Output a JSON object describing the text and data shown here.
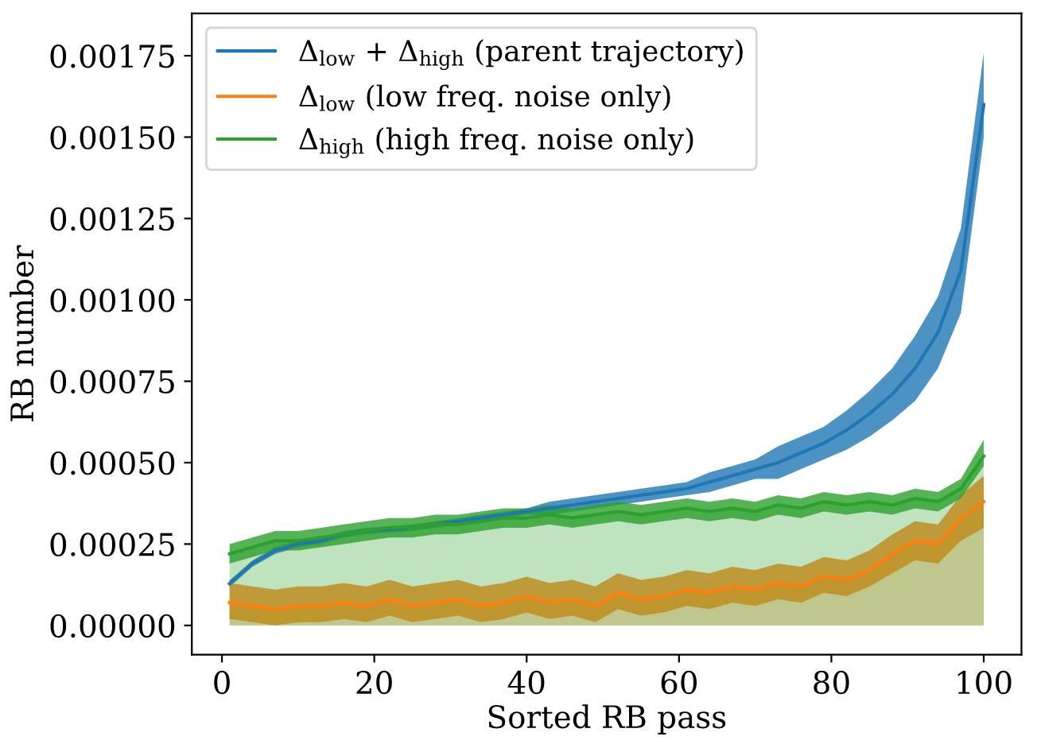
{
  "chart_data": {
    "type": "line",
    "xlabel": "Sorted RB pass",
    "ylabel": "RB number",
    "x": [
      1,
      4,
      7,
      10,
      13,
      16,
      19,
      22,
      25,
      28,
      31,
      34,
      37,
      40,
      43,
      46,
      49,
      52,
      55,
      58,
      61,
      64,
      67,
      70,
      73,
      76,
      79,
      82,
      85,
      88,
      91,
      94,
      97,
      100
    ],
    "series": [
      {
        "name": "Δ$_{low}$ + Δ$_{high}$ (parent trajectory)",
        "color": "#1f77b4",
        "values": [
          0.000128,
          0.00019,
          0.00023,
          0.00025,
          0.00026,
          0.00028,
          0.00029,
          0.000295,
          0.0003,
          0.00031,
          0.00032,
          0.00033,
          0.00034,
          0.00035,
          0.00036,
          0.00037,
          0.00038,
          0.00039,
          0.0004,
          0.00041,
          0.00042,
          0.00044,
          0.00046,
          0.00048,
          0.0005,
          0.00053,
          0.00056,
          0.0006,
          0.00065,
          0.00071,
          0.00079,
          0.0009,
          0.00109,
          0.0016
        ],
        "lower": [
          0.000118,
          0.00018,
          0.00022,
          0.00024,
          0.00025,
          0.00027,
          0.00028,
          0.000285,
          0.00029,
          0.0003,
          0.00031,
          0.00032,
          0.00033,
          0.00034,
          0.00034,
          0.00035,
          0.00036,
          0.00037,
          0.00038,
          0.00039,
          0.0004,
          0.00041,
          0.00043,
          0.00045,
          0.00045,
          0.00048,
          0.00051,
          0.00054,
          0.00058,
          0.00063,
          0.00069,
          0.00079,
          0.00096,
          0.0015
        ],
        "upper": [
          0.000138,
          0.0002,
          0.00024,
          0.00026,
          0.00027,
          0.00029,
          0.0003,
          0.000305,
          0.00031,
          0.00032,
          0.00033,
          0.00034,
          0.00035,
          0.00036,
          0.00038,
          0.00039,
          0.0004,
          0.00041,
          0.00042,
          0.00043,
          0.00044,
          0.00047,
          0.00049,
          0.00051,
          0.00055,
          0.00058,
          0.00061,
          0.00066,
          0.00072,
          0.00079,
          0.00089,
          0.00101,
          0.00122,
          0.00176
        ]
      },
      {
        "name": "Δ$_{low}$ (low freq. noise only)",
        "color": "#ff7f0e",
        "type": "area",
        "values": [
          7e-05,
          6e-05,
          5e-05,
          6e-05,
          6e-05,
          7e-05,
          6e-05,
          8e-05,
          6e-05,
          7e-05,
          8e-05,
          6e-05,
          7e-05,
          9e-05,
          7e-05,
          8e-05,
          6e-05,
          0.0001,
          8e-05,
          9e-05,
          0.00011,
          0.0001,
          0.00012,
          0.00011,
          0.00013,
          0.00012,
          0.00015,
          0.00014,
          0.00017,
          0.00022,
          0.00026,
          0.00025,
          0.00033,
          0.00038
        ],
        "lower": [
          2e-05,
          1e-05,
          0.0,
          1e-05,
          1e-05,
          2e-05,
          1e-05,
          3e-05,
          1e-05,
          2e-05,
          3e-05,
          1e-05,
          2e-05,
          4e-05,
          2e-05,
          3e-05,
          1e-05,
          5e-05,
          3e-05,
          4e-05,
          6e-05,
          5e-05,
          7e-05,
          6e-05,
          8e-05,
          7e-05,
          0.0001,
          9e-05,
          0.00012,
          0.00016,
          0.0002,
          0.00019,
          0.00026,
          0.0003
        ],
        "upper": [
          0.00013,
          0.00012,
          0.00011,
          0.00012,
          0.00012,
          0.00013,
          0.00012,
          0.00014,
          0.00012,
          0.00013,
          0.00014,
          0.00012,
          0.00013,
          0.00015,
          0.00013,
          0.00014,
          0.00012,
          0.00016,
          0.00014,
          0.00015,
          0.00017,
          0.00016,
          0.00018,
          0.00017,
          0.00019,
          0.00018,
          0.00021,
          0.0002,
          0.00023,
          0.00028,
          0.00032,
          0.00031,
          0.0004,
          0.00046
        ]
      },
      {
        "name": "Δ$_{high}$ (high freq. noise only)",
        "color": "#2ca02c",
        "type": "area",
        "values": [
          0.00022,
          0.00024,
          0.00026,
          0.00026,
          0.00027,
          0.00028,
          0.00029,
          0.0003,
          0.0003,
          0.00031,
          0.00031,
          0.00032,
          0.00033,
          0.00033,
          0.00034,
          0.00033,
          0.00034,
          0.00035,
          0.00034,
          0.00035,
          0.00036,
          0.00035,
          0.00036,
          0.00035,
          0.00037,
          0.00036,
          0.00038,
          0.00037,
          0.00038,
          0.00037,
          0.00039,
          0.00038,
          0.00042,
          0.00052
        ],
        "lower": [
          0.00019,
          0.00021,
          0.00023,
          0.00023,
          0.00024,
          0.00025,
          0.00026,
          0.00027,
          0.00027,
          0.00028,
          0.00028,
          0.00029,
          0.0003,
          0.0003,
          0.00031,
          0.0003,
          0.00031,
          0.00032,
          0.00031,
          0.00032,
          0.00033,
          0.00032,
          0.00033,
          0.00032,
          0.00034,
          0.00033,
          0.00035,
          0.00034,
          0.00035,
          0.00034,
          0.00036,
          0.00035,
          0.00039,
          0.00049
        ],
        "upper": [
          0.00025,
          0.00027,
          0.00029,
          0.00029,
          0.0003,
          0.00031,
          0.00032,
          0.00033,
          0.00033,
          0.00034,
          0.00034,
          0.00035,
          0.00036,
          0.00036,
          0.00037,
          0.00036,
          0.00037,
          0.00038,
          0.00037,
          0.00038,
          0.00039,
          0.00038,
          0.00039,
          0.00038,
          0.0004,
          0.00039,
          0.00041,
          0.0004,
          0.00041,
          0.0004,
          0.00042,
          0.00041,
          0.00045,
          0.00057
        ]
      }
    ],
    "xlim": [
      -3.95,
      104.95
    ],
    "xticks": [
      0,
      20,
      40,
      60,
      80,
      100
    ],
    "ylim": [
      -9e-05,
      0.00188
    ],
    "yticks": [
      {
        "value": 0.0,
        "label": "0.00000"
      },
      {
        "value": 0.00025,
        "label": "0.00025"
      },
      {
        "value": 0.0005,
        "label": "0.00050"
      },
      {
        "value": 0.00075,
        "label": "0.00075"
      },
      {
        "value": 0.001,
        "label": "0.00100"
      },
      {
        "value": 0.00125,
        "label": "0.00125"
      },
      {
        "value": 0.0015,
        "label": "0.00150"
      },
      {
        "value": 0.00175,
        "label": "0.00175"
      }
    ],
    "legend": "top left",
    "grid": false,
    "marker": "none",
    "line_style": "solid"
  }
}
